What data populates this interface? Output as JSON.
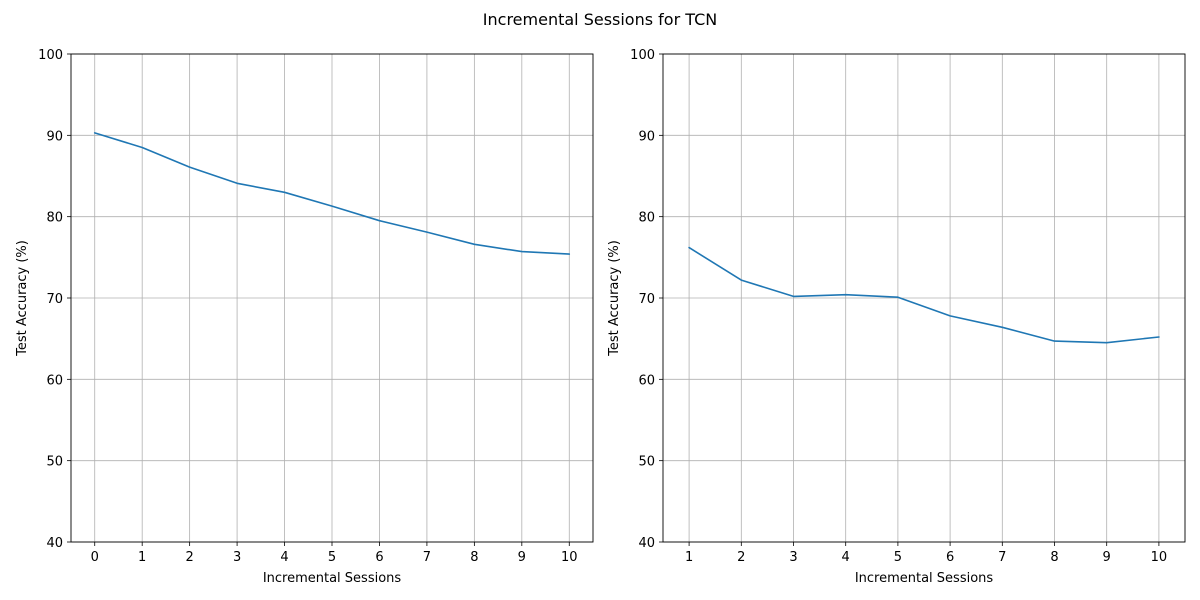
{
  "suptitle": "Incremental Sessions for TCN",
  "chart_data": [
    {
      "type": "line",
      "title": "",
      "xlabel": "Incremental Sessions",
      "ylabel": "Test Accuracy (%)",
      "ylim": [
        40,
        100
      ],
      "xlim": [
        -0.5,
        10.5
      ],
      "grid": true,
      "xticks": [
        0,
        1,
        2,
        3,
        4,
        5,
        6,
        7,
        8,
        9,
        10
      ],
      "yticks": [
        40,
        50,
        60,
        70,
        80,
        90,
        100
      ],
      "series": [
        {
          "color": "#1f77b4",
          "x": [
            0,
            1,
            2,
            3,
            4,
            5,
            6,
            7,
            8,
            9,
            10
          ],
          "y": [
            90.3,
            88.5,
            86.1,
            84.1,
            83.0,
            81.3,
            79.5,
            78.1,
            76.6,
            75.7,
            75.4
          ]
        }
      ]
    },
    {
      "type": "line",
      "title": "",
      "xlabel": "Incremental Sessions",
      "ylabel": "Test Accuracy (%)",
      "ylim": [
        40,
        100
      ],
      "xlim": [
        0.5,
        10.5
      ],
      "grid": true,
      "xticks": [
        1,
        2,
        3,
        4,
        5,
        6,
        7,
        8,
        9,
        10
      ],
      "yticks": [
        40,
        50,
        60,
        70,
        80,
        90,
        100
      ],
      "series": [
        {
          "color": "#1f77b4",
          "x": [
            1,
            2,
            3,
            4,
            5,
            6,
            7,
            8,
            9,
            10
          ],
          "y": [
            76.2,
            72.2,
            70.2,
            70.4,
            70.1,
            67.8,
            66.4,
            64.7,
            64.5,
            65.2
          ]
        }
      ]
    }
  ]
}
